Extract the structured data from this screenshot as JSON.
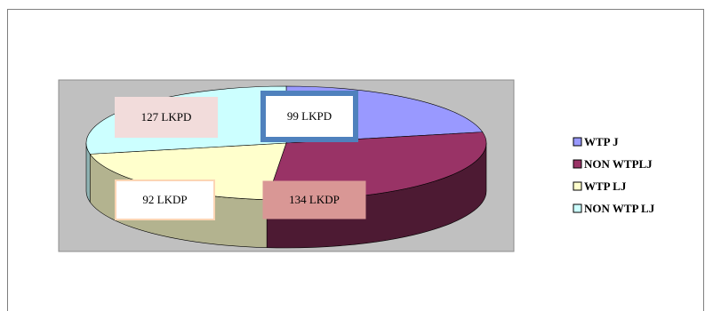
{
  "chart_data": {
    "type": "pie",
    "three_d": true,
    "categories": [
      "WTP J",
      "NON WTPLJ",
      "WTP LJ",
      "NON WTP LJ"
    ],
    "values": [
      99,
      134,
      92,
      127
    ],
    "data_labels": [
      "99 LKPD",
      "134 LKDP",
      "92 LKDP",
      "127 LKPD"
    ],
    "colors": {
      "top": [
        "#9999ff",
        "#993366",
        "#ffffcc",
        "#ccffff"
      ],
      "side": [
        "#5c5c99",
        "#4d1a33",
        "#b3b38f",
        "#8fb3b3"
      ],
      "label_bg": [
        "#ffffff",
        "#d99795",
        "#ffffff",
        "#f2dcdb"
      ],
      "label_border": [
        "#4f81bd",
        "#d99795",
        "#fcd5b4",
        "#f2dcdb"
      ],
      "plot_area": "#c0c0c0"
    },
    "legend_position": "right"
  }
}
